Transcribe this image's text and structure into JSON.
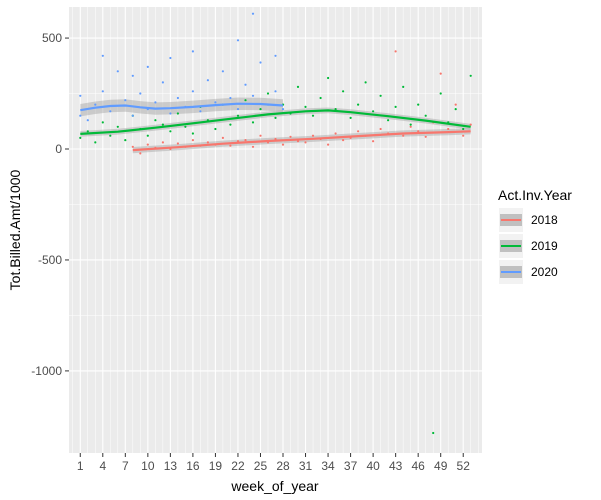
{
  "chart_data": {
    "type": "scatter",
    "xlabel": "week_of_year",
    "ylabel": "Tot.Billed.Amt/1000",
    "xlim": [
      -0.5,
      54.5
    ],
    "ylim": [
      -1370,
      640
    ],
    "x_ticks": [
      1,
      4,
      7,
      10,
      13,
      16,
      19,
      22,
      25,
      28,
      31,
      34,
      37,
      40,
      43,
      46,
      49,
      52
    ],
    "x_tick_labels": [
      "1",
      "4",
      "7",
      "10",
      "13",
      "16",
      "19",
      "22",
      "25",
      "28",
      "31",
      "34",
      "37",
      "40",
      "43",
      "46",
      "49",
      "52"
    ],
    "y_ticks": [
      -1000,
      -500,
      0,
      500
    ],
    "y_tick_labels": [
      "-1000",
      "-500",
      "0",
      "500"
    ],
    "grid": true,
    "legend": {
      "title": "Act.Inv.Year",
      "placement": "right",
      "entries": [
        "2018",
        "2019",
        "2020"
      ]
    },
    "series": [
      {
        "name": "2018",
        "color": "#F8766D",
        "smooth": [
          [
            8,
            -5
          ],
          [
            14,
            8
          ],
          [
            20,
            24
          ],
          [
            26,
            36
          ],
          [
            32,
            46
          ],
          [
            38,
            58
          ],
          [
            44,
            70
          ],
          [
            50,
            76
          ],
          [
            53,
            80
          ]
        ],
        "band": 14,
        "points": [
          [
            8,
            10
          ],
          [
            9,
            -20
          ],
          [
            10,
            20
          ],
          [
            11,
            5
          ],
          [
            12,
            30
          ],
          [
            13,
            0
          ],
          [
            14,
            25
          ],
          [
            15,
            10
          ],
          [
            16,
            40
          ],
          [
            17,
            15
          ],
          [
            18,
            30
          ],
          [
            19,
            20
          ],
          [
            20,
            50
          ],
          [
            21,
            15
          ],
          [
            22,
            35
          ],
          [
            23,
            40
          ],
          [
            24,
            10
          ],
          [
            25,
            60
          ],
          [
            26,
            30
          ],
          [
            27,
            45
          ],
          [
            28,
            20
          ],
          [
            29,
            55
          ],
          [
            30,
            35
          ],
          [
            31,
            30
          ],
          [
            32,
            60
          ],
          [
            33,
            45
          ],
          [
            34,
            20
          ],
          [
            35,
            70
          ],
          [
            36,
            40
          ],
          [
            37,
            50
          ],
          [
            38,
            80
          ],
          [
            39,
            60
          ],
          [
            40,
            35
          ],
          [
            41,
            90
          ],
          [
            42,
            70
          ],
          [
            43,
            440
          ],
          [
            44,
            60
          ],
          [
            45,
            100
          ],
          [
            46,
            80
          ],
          [
            47,
            55
          ],
          [
            48,
            120
          ],
          [
            49,
            340
          ],
          [
            50,
            90
          ],
          [
            51,
            200
          ],
          [
            52,
            60
          ],
          [
            53,
            110
          ]
        ]
      },
      {
        "name": "2019",
        "color": "#00BA38",
        "smooth": [
          [
            1,
            68
          ],
          [
            6,
            78
          ],
          [
            11,
            96
          ],
          [
            16,
            116
          ],
          [
            21,
            136
          ],
          [
            26,
            156
          ],
          [
            31,
            170
          ],
          [
            34,
            174
          ],
          [
            37,
            166
          ],
          [
            42,
            148
          ],
          [
            47,
            128
          ],
          [
            53,
            100
          ]
        ],
        "band": 13,
        "points": [
          [
            1,
            50
          ],
          [
            2,
            80
          ],
          [
            3,
            30
          ],
          [
            4,
            120
          ],
          [
            5,
            60
          ],
          [
            6,
            100
          ],
          [
            7,
            40
          ],
          [
            8,
            150
          ],
          [
            9,
            90
          ],
          [
            10,
            60
          ],
          [
            11,
            130
          ],
          [
            12,
            110
          ],
          [
            13,
            80
          ],
          [
            14,
            160
          ],
          [
            15,
            100
          ],
          [
            16,
            70
          ],
          [
            17,
            190
          ],
          [
            18,
            130
          ],
          [
            19,
            90
          ],
          [
            20,
            200
          ],
          [
            21,
            110
          ],
          [
            22,
            150
          ],
          [
            23,
            220
          ],
          [
            24,
            120
          ],
          [
            25,
            180
          ],
          [
            26,
            250
          ],
          [
            27,
            140
          ],
          [
            28,
            200
          ],
          [
            29,
            160
          ],
          [
            30,
            280
          ],
          [
            31,
            190
          ],
          [
            32,
            150
          ],
          [
            33,
            230
          ],
          [
            34,
            320
          ],
          [
            35,
            180
          ],
          [
            36,
            260
          ],
          [
            37,
            140
          ],
          [
            38,
            200
          ],
          [
            39,
            300
          ],
          [
            40,
            170
          ],
          [
            41,
            240
          ],
          [
            42,
            130
          ],
          [
            43,
            190
          ],
          [
            44,
            280
          ],
          [
            45,
            110
          ],
          [
            46,
            200
          ],
          [
            47,
            150
          ],
          [
            48,
            -1280
          ],
          [
            49,
            250
          ],
          [
            50,
            120
          ],
          [
            51,
            180
          ],
          [
            52,
            90
          ],
          [
            53,
            330
          ]
        ]
      },
      {
        "name": "2020",
        "color": "#619CFF",
        "smooth": [
          [
            1,
            175
          ],
          [
            3,
            186
          ],
          [
            5,
            194
          ],
          [
            7,
            196
          ],
          [
            9,
            188
          ],
          [
            11,
            182
          ],
          [
            13,
            184
          ],
          [
            16,
            190
          ],
          [
            19,
            198
          ],
          [
            22,
            204
          ],
          [
            25,
            203
          ],
          [
            28,
            196
          ]
        ],
        "band": 28,
        "points": [
          [
            1,
            150
          ],
          [
            1,
            240
          ],
          [
            2,
            130
          ],
          [
            3,
            200
          ],
          [
            4,
            420
          ],
          [
            4,
            260
          ],
          [
            5,
            170
          ],
          [
            6,
            350
          ],
          [
            7,
            220
          ],
          [
            8,
            330
          ],
          [
            8,
            150
          ],
          [
            9,
            250
          ],
          [
            10,
            370
          ],
          [
            10,
            180
          ],
          [
            11,
            210
          ],
          [
            12,
            300
          ],
          [
            13,
            410
          ],
          [
            13,
            160
          ],
          [
            14,
            230
          ],
          [
            15,
            190
          ],
          [
            16,
            440
          ],
          [
            16,
            260
          ],
          [
            17,
            170
          ],
          [
            18,
            310
          ],
          [
            19,
            210
          ],
          [
            20,
            350
          ],
          [
            21,
            230
          ],
          [
            22,
            490
          ],
          [
            22,
            180
          ],
          [
            23,
            290
          ],
          [
            24,
            610
          ],
          [
            24,
            240
          ],
          [
            25,
            390
          ],
          [
            26,
            200
          ],
          [
            27,
            420
          ],
          [
            27,
            260
          ],
          [
            28,
            180
          ]
        ]
      }
    ]
  }
}
